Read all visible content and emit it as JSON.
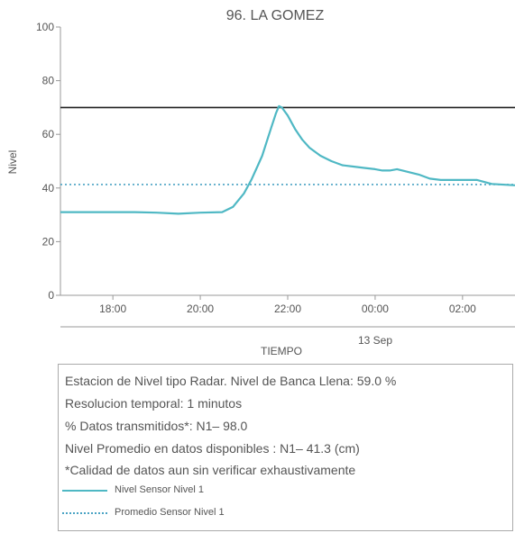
{
  "chart_data": {
    "type": "line",
    "title": "96. LA GOMEZ",
    "xlabel": "TIEMPO",
    "ylabel": "Nivel",
    "ylim": [
      0,
      100
    ],
    "yticks": [
      0,
      20,
      40,
      60,
      80,
      100
    ],
    "x_range": [
      "2023-09-12T16:48",
      "2023-09-13T03:12"
    ],
    "x_ticks": [
      {
        "t": "2023-09-12T18:00",
        "label": "18:00"
      },
      {
        "t": "2023-09-12T20:00",
        "label": "20:00"
      },
      {
        "t": "2023-09-12T22:00",
        "label": "22:00"
      },
      {
        "t": "2023-09-13T00:00",
        "label": "00:00"
      },
      {
        "t": "2023-09-13T02:00",
        "label": "02:00"
      }
    ],
    "date_label": "13 Sep",
    "grid": false,
    "reference_lines": [
      {
        "name": "Nivel de Banca Llena",
        "value": 70,
        "color": "#222222",
        "style": "solid"
      },
      {
        "name": "Promedio Sensor Nivel 1",
        "value": 41.3,
        "color": "#4aa3c4",
        "style": "dotted"
      }
    ],
    "series": [
      {
        "name": "Nivel Sensor Nivel 1",
        "color": "#4fb8c4",
        "points": [
          [
            "2023-09-12T16:48",
            31.0
          ],
          [
            "2023-09-12T17:30",
            31.0
          ],
          [
            "2023-09-12T18:30",
            31.0
          ],
          [
            "2023-09-12T19:00",
            30.8
          ],
          [
            "2023-09-12T19:30",
            30.4
          ],
          [
            "2023-09-12T20:00",
            30.8
          ],
          [
            "2023-09-12T20:30",
            31.0
          ],
          [
            "2023-09-12T20:45",
            33.0
          ],
          [
            "2023-09-12T21:00",
            38.0
          ],
          [
            "2023-09-12T21:10",
            43.0
          ],
          [
            "2023-09-12T21:20",
            49.0
          ],
          [
            "2023-09-12T21:25",
            52.0
          ],
          [
            "2023-09-12T21:32",
            58.0
          ],
          [
            "2023-09-12T21:38",
            63.0
          ],
          [
            "2023-09-12T21:44",
            68.0
          ],
          [
            "2023-09-12T21:48",
            70.5
          ],
          [
            "2023-09-12T21:52",
            70.0
          ],
          [
            "2023-09-12T22:00",
            67.0
          ],
          [
            "2023-09-12T22:10",
            62.0
          ],
          [
            "2023-09-12T22:20",
            58.0
          ],
          [
            "2023-09-12T22:30",
            55.0
          ],
          [
            "2023-09-12T22:45",
            52.0
          ],
          [
            "2023-09-12T23:00",
            50.0
          ],
          [
            "2023-09-12T23:15",
            48.5
          ],
          [
            "2023-09-12T23:30",
            48.0
          ],
          [
            "2023-09-12T23:45",
            47.5
          ],
          [
            "2023-09-13T00:00",
            47.0
          ],
          [
            "2023-09-13T00:10",
            46.5
          ],
          [
            "2023-09-13T00:20",
            46.5
          ],
          [
            "2023-09-13T00:30",
            47.0
          ],
          [
            "2023-09-13T00:45",
            46.0
          ],
          [
            "2023-09-13T01:00",
            45.0
          ],
          [
            "2023-09-13T01:15",
            43.5
          ],
          [
            "2023-09-13T01:30",
            43.0
          ],
          [
            "2023-09-13T02:00",
            43.0
          ],
          [
            "2023-09-13T02:20",
            43.0
          ],
          [
            "2023-09-13T02:40",
            41.5
          ],
          [
            "2023-09-13T03:12",
            41.0
          ]
        ]
      }
    ]
  },
  "info": {
    "lines": [
      "Estacion de Nivel tipo Radar. Nivel de Banca Llena: 59.0 %",
      "Resolucion temporal: 1 minutos",
      "% Datos transmitidos*: N1– 98.0",
      "Nivel Promedio en datos disponibles : N1– 41.3 (cm)",
      "*Calidad de datos aun sin verificar exhaustivamente"
    ],
    "legend": [
      {
        "label": "Nivel Sensor Nivel 1",
        "color": "#4fb8c4",
        "style": "solid"
      },
      {
        "label": "Promedio Sensor Nivel 1",
        "color": "#4aa3c4",
        "style": "dotted"
      }
    ]
  }
}
